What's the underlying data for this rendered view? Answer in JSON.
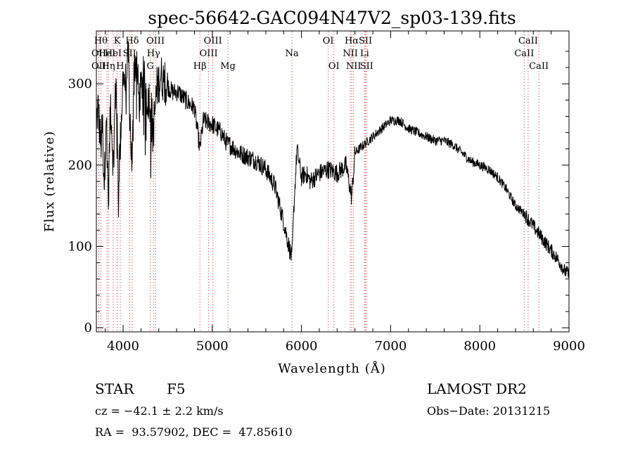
{
  "chart_data": {
    "type": "line",
    "title": "spec-56642-GAC094N47V2_sp03-139.fits",
    "xlabel": "Wavelength (Å)",
    "ylabel": "Flux (relative)",
    "xlim": [
      3700,
      9000
    ],
    "ylim": [
      -5,
      365
    ],
    "xticks": [
      4000,
      5000,
      6000,
      7000,
      8000,
      9000
    ],
    "yticks": [
      0,
      100,
      200,
      300
    ],
    "grid": false,
    "line_color": "#000000",
    "marker_color": "#cc3333",
    "anchors": [
      [
        3700,
        255
      ],
      [
        3720,
        270
      ],
      [
        3750,
        225
      ],
      [
        3770,
        245
      ],
      [
        3790,
        175
      ],
      [
        3810,
        270
      ],
      [
        3835,
        160
      ],
      [
        3860,
        280
      ],
      [
        3890,
        200
      ],
      [
        3920,
        310
      ],
      [
        3945,
        180
      ],
      [
        3970,
        230
      ],
      [
        4000,
        310
      ],
      [
        4030,
        300
      ],
      [
        4060,
        330
      ],
      [
        4080,
        250
      ],
      [
        4102,
        190
      ],
      [
        4120,
        320
      ],
      [
        4150,
        330
      ],
      [
        4180,
        275
      ],
      [
        4220,
        310
      ],
      [
        4260,
        290
      ],
      [
        4300,
        280
      ],
      [
        4340,
        245
      ],
      [
        4380,
        295
      ],
      [
        4420,
        310
      ],
      [
        4480,
        300
      ],
      [
        4550,
        290
      ],
      [
        4620,
        290
      ],
      [
        4700,
        280
      ],
      [
        4800,
        270
      ],
      [
        4861,
        220
      ],
      [
        4900,
        255
      ],
      [
        5000,
        250
      ],
      [
        5100,
        240
      ],
      [
        5173,
        225
      ],
      [
        5200,
        225
      ],
      [
        5300,
        215
      ],
      [
        5400,
        210
      ],
      [
        5500,
        205
      ],
      [
        5600,
        195
      ],
      [
        5700,
        175
      ],
      [
        5800,
        130
      ],
      [
        5870,
        95
      ],
      [
        5893,
        85
      ],
      [
        5920,
        160
      ],
      [
        5950,
        220
      ],
      [
        6000,
        185
      ],
      [
        6050,
        190
      ],
      [
        6100,
        180
      ],
      [
        6200,
        190
      ],
      [
        6300,
        195
      ],
      [
        6400,
        190
      ],
      [
        6500,
        200
      ],
      [
        6563,
        160
      ],
      [
        6600,
        215
      ],
      [
        6700,
        225
      ],
      [
        6800,
        235
      ],
      [
        6900,
        245
      ],
      [
        7000,
        255
      ],
      [
        7100,
        255
      ],
      [
        7200,
        245
      ],
      [
        7300,
        240
      ],
      [
        7400,
        235
      ],
      [
        7500,
        230
      ],
      [
        7600,
        230
      ],
      [
        7700,
        225
      ],
      [
        7800,
        215
      ],
      [
        7900,
        205
      ],
      [
        8000,
        200
      ],
      [
        8100,
        195
      ],
      [
        8200,
        185
      ],
      [
        8300,
        170
      ],
      [
        8400,
        150
      ],
      [
        8500,
        140
      ],
      [
        8600,
        125
      ],
      [
        8700,
        110
      ],
      [
        8800,
        95
      ],
      [
        8900,
        80
      ],
      [
        8950,
        70
      ],
      [
        9000,
        65
      ]
    ],
    "lines": [
      {
        "wl": 3727,
        "label": "OII",
        "row": 1
      },
      {
        "wl": 3727,
        "label": "OII",
        "row": 2
      },
      {
        "wl": 3750,
        "label": "Hθ",
        "row": 0
      },
      {
        "wl": 3819,
        "label": "HeI",
        "row": 1
      },
      {
        "wl": 3835,
        "label": "Hη",
        "row": 2
      },
      {
        "wl": 3889,
        "label": "HeI",
        "row": 1
      },
      {
        "wl": 3934,
        "label": "K",
        "row": 0
      },
      {
        "wl": 3968,
        "label": "H",
        "row": 2
      },
      {
        "wl": 4072,
        "label": "SII",
        "row": 1
      },
      {
        "wl": 4102,
        "label": "Hδ",
        "row": 0
      },
      {
        "wl": 4304,
        "label": "G",
        "row": 2
      },
      {
        "wl": 4341,
        "label": "Hγ",
        "row": 1
      },
      {
        "wl": 4363,
        "label": "OIII",
        "row": 0
      },
      {
        "wl": 4861,
        "label": "Hβ",
        "row": 2
      },
      {
        "wl": 4959,
        "label": "OIII",
        "row": 1
      },
      {
        "wl": 5007,
        "label": "OIII",
        "row": 0
      },
      {
        "wl": 5175,
        "label": "Mg",
        "row": 2
      },
      {
        "wl": 5893,
        "label": "Na",
        "row": 1
      },
      {
        "wl": 6300,
        "label": "OI",
        "row": 0
      },
      {
        "wl": 6364,
        "label": "OI",
        "row": 2
      },
      {
        "wl": 6548,
        "label": "NII",
        "row": 1
      },
      {
        "wl": 6563,
        "label": "Hα",
        "row": 0
      },
      {
        "wl": 6584,
        "label": "NII",
        "row": 2
      },
      {
        "wl": 6717,
        "label": "SII",
        "row": 0
      },
      {
        "wl": 6731,
        "label": "SII",
        "row": 2
      },
      {
        "wl": 6708,
        "label": "Li",
        "row": 1
      },
      {
        "wl": 8498,
        "label": "CaII",
        "row": 1
      },
      {
        "wl": 8542,
        "label": "CaII",
        "row": 0
      },
      {
        "wl": 8662,
        "label": "CaII",
        "row": 2
      }
    ]
  },
  "info": {
    "object_class": "STAR",
    "subclass": "F5",
    "survey": "LAMOST DR2",
    "cz": "cz = −42.1 ± 2.2 km/s",
    "obs_date": "Obs−Date: 20131215",
    "coords": "RA =  93.57902, DEC =  47.85610"
  }
}
